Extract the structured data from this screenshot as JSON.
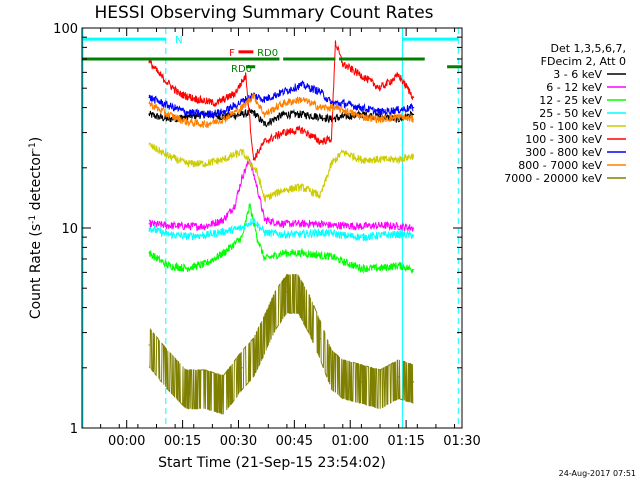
{
  "chart_data": {
    "type": "line",
    "title": "HESSI Observing Summary Count Rates",
    "xlabel": "Start Time (21-Sep-15 23:54:02)",
    "ylabel_parts": [
      "Count Rate (s",
      "-1",
      " detector",
      "-1",
      ")"
    ],
    "y_log": true,
    "ylim": [
      1,
      100
    ],
    "xlim_minutes": [
      -6,
      96
    ],
    "x_ticks": [
      {
        "minute": 6,
        "label": "00:00"
      },
      {
        "minute": 21,
        "label": "00:15"
      },
      {
        "minute": 36,
        "label": "00:30"
      },
      {
        "minute": 51,
        "label": "00:45"
      },
      {
        "minute": 66,
        "label": "01:00"
      },
      {
        "minute": 81,
        "label": "01:15"
      },
      {
        "minute": 96,
        "label": "01:30"
      }
    ],
    "y_ticks": [
      {
        "value": 1,
        "label": "1"
      },
      {
        "value": 10,
        "label": "10"
      },
      {
        "value": 100,
        "label": "100"
      }
    ],
    "legend_header": [
      "Det 1,3,5,6,7,",
      "FDecim 2, Att 0"
    ],
    "series": [
      {
        "name": "3 - 6 keV",
        "color": "#000000",
        "x": [
          12,
          17,
          22,
          27,
          32,
          37,
          40,
          43,
          48,
          53,
          58,
          61,
          64,
          69,
          74,
          79,
          83
        ],
        "values": [
          37,
          35,
          36,
          37,
          36,
          37,
          38,
          33,
          37,
          37,
          36,
          35,
          36,
          37,
          36,
          35,
          37
        ]
      },
      {
        "name": "6 - 12 keV",
        "color": "#ff00ff",
        "x": [
          12,
          17,
          22,
          27,
          32,
          35,
          37,
          39,
          41,
          43,
          48,
          53,
          58,
          61,
          64,
          69,
          74,
          79,
          83
        ],
        "values": [
          10.5,
          10.3,
          10.2,
          10.2,
          11,
          13,
          18,
          22,
          16,
          11,
          10.5,
          10.5,
          10.5,
          10.3,
          10.3,
          10.2,
          10.3,
          10.2,
          10
        ]
      },
      {
        "name": "12 - 25 keV",
        "color": "#00ff00",
        "x": [
          12,
          17,
          22,
          27,
          32,
          37,
          39,
          41,
          43,
          48,
          53,
          58,
          61,
          64,
          69,
          74,
          79,
          83
        ],
        "values": [
          7.5,
          6.5,
          6.3,
          6.6,
          7.5,
          9,
          13,
          9,
          7,
          7.5,
          7.5,
          7.3,
          7.2,
          6.8,
          6.3,
          6.3,
          6.5,
          6.2
        ]
      },
      {
        "name": "25 - 50 keV",
        "color": "#00ffff",
        "x": [
          12,
          17,
          22,
          27,
          32,
          37,
          40,
          43,
          48,
          53,
          58,
          61,
          64,
          69,
          74,
          79,
          83
        ],
        "values": [
          10,
          9.3,
          9.1,
          9.2,
          9.6,
          10,
          11,
          9.5,
          9.3,
          9.3,
          9.5,
          9.4,
          9.2,
          9,
          9.2,
          9.3,
          9.2
        ]
      },
      {
        "name": "50 - 100 keV",
        "color": "#cccc00",
        "x": [
          12,
          17,
          22,
          27,
          32,
          37,
          41,
          43,
          48,
          53,
          58,
          61,
          64,
          69,
          74,
          79,
          83
        ],
        "values": [
          26,
          23,
          21,
          21,
          22,
          24,
          19,
          14,
          15.5,
          16,
          14.5,
          21,
          24,
          22,
          22,
          22,
          23
        ]
      },
      {
        "name": "100 - 300 keV",
        "color": "#ff0000",
        "x": [
          12,
          15,
          20,
          25,
          30,
          35,
          38,
          40,
          43,
          48,
          53,
          58,
          61,
          62,
          64,
          69,
          74,
          79,
          83
        ],
        "values": [
          68,
          58,
          47,
          44,
          42,
          47,
          58,
          22,
          27,
          30,
          31,
          27,
          28,
          85,
          66,
          58,
          50,
          58,
          45
        ]
      },
      {
        "name": "300 - 800 keV",
        "color": "#0000ff",
        "x": [
          12,
          17,
          22,
          27,
          32,
          37,
          40,
          43,
          48,
          53,
          58,
          61,
          64,
          69,
          74,
          79,
          83
        ],
        "values": [
          45,
          41,
          38,
          37,
          38,
          43,
          46,
          44,
          48,
          52,
          48,
          42,
          42,
          40,
          38,
          39,
          40
        ]
      },
      {
        "name": "800 - 7000 keV",
        "color": "#ff8000",
        "x": [
          12,
          17,
          22,
          27,
          32,
          37,
          40,
          43,
          48,
          53,
          58,
          61,
          64,
          69,
          74,
          79,
          83
        ],
        "values": [
          42,
          37,
          34,
          33,
          35,
          40,
          46,
          37,
          42,
          44,
          40,
          40,
          39,
          36,
          35,
          36,
          35
        ]
      },
      {
        "name": "7000 - 20000 keV",
        "color": "#808000",
        "x": [
          12,
          17,
          22,
          27,
          32,
          37,
          40,
          43,
          46,
          49,
          52,
          55,
          58,
          61,
          64,
          69,
          74,
          79,
          83
        ],
        "values": [
          2.6,
          2,
          1.6,
          1.6,
          1.5,
          2,
          2.3,
          3,
          4,
          4.8,
          4.8,
          3.8,
          2.8,
          2,
          1.8,
          1.7,
          1.6,
          1.8,
          1.7
        ]
      }
    ],
    "annotations": {
      "flags_bars": [
        {
          "label": "N",
          "color": "#00ffff",
          "value": 88,
          "segments": [
            [
              -6,
              16.5
            ],
            [
              80,
              95
            ]
          ]
        },
        {
          "label": "F",
          "color": "#ff0000",
          "value": 76,
          "segments": [
            [
              36,
              40
            ]
          ]
        },
        {
          "label": "RD0",
          "color": "#008000",
          "value": 70,
          "segments": [
            [
              -6,
              47
            ],
            [
              48,
              62
            ],
            [
              63,
              86
            ]
          ]
        },
        {
          "label": "RD0",
          "color": "#008000",
          "value": 64,
          "segments": [
            [
              38,
              40.5
            ]
          ]
        },
        {
          "label": "",
          "color": "#008000",
          "value": 64,
          "segments": [
            [
              92,
              96
            ]
          ]
        }
      ],
      "cyan_lines_solid": [
        -6,
        80
      ],
      "cyan_lines_dashed": [
        16.5,
        95
      ]
    },
    "footer_date": "24-Aug-2017 07:51"
  }
}
